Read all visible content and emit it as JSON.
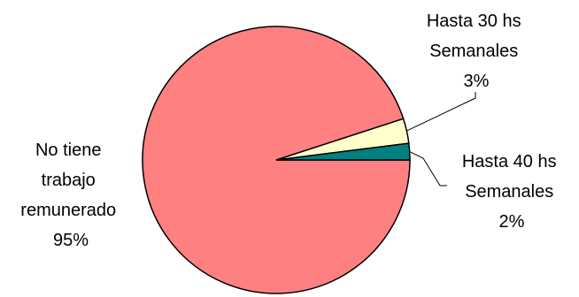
{
  "chart_data": {
    "type": "pie",
    "title": "",
    "slices": [
      {
        "label_lines": [
          "No tiene",
          "trabajo",
          "remunerado"
        ],
        "pct_label": "95%",
        "value": 95,
        "color": "#ff8080"
      },
      {
        "label_lines": [
          "Hasta 30 hs",
          "Semanales"
        ],
        "pct_label": "3%",
        "value": 3,
        "color": "#ffffcc"
      },
      {
        "label_lines": [
          "Hasta 40 hs",
          "Semanales"
        ],
        "pct_label": "2%",
        "value": 2,
        "color": "#008080"
      }
    ],
    "legend": "none",
    "border_color": "#000000"
  }
}
